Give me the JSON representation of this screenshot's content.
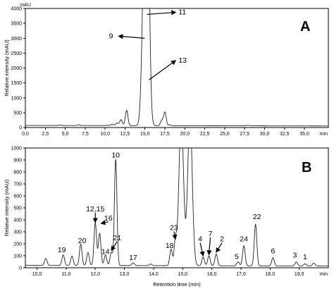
{
  "chart_data": [
    {
      "panel": "A",
      "type": "line",
      "unit_label": "mAU",
      "ylabel": "Relative intensity (mAU)",
      "xlabel": "",
      "x_unit_label": "min",
      "xlim": [
        0,
        38
      ],
      "ylim": [
        0,
        4000
      ],
      "xticks": [
        "0,0",
        "2,5",
        "5,0",
        "7,5",
        "10,0",
        "12,5",
        "15,0",
        "17,5",
        "20,0",
        "22,5",
        "25,0",
        "27,5",
        "30,0",
        "32,5",
        "35,0"
      ],
      "yticks": [
        "0",
        "500",
        "1000",
        "1500",
        "2000",
        "2500",
        "3000",
        "3500",
        "4000"
      ],
      "baseline": 70,
      "peaks": [
        {
          "x": 4.3,
          "y": 60
        },
        {
          "x": 6.7,
          "y": 70
        },
        {
          "x": 10.3,
          "y": 50
        },
        {
          "x": 10.9,
          "y": 90
        },
        {
          "x": 11.5,
          "y": 130
        },
        {
          "x": 12.0,
          "y": 240
        },
        {
          "x": 12.7,
          "y": 560
        },
        {
          "x": 14.6,
          "y": 200
        },
        {
          "x": 14.95,
          "y": 4000
        },
        {
          "x": 15.25,
          "y": 4000
        },
        {
          "x": 15.5,
          "y": 1600
        },
        {
          "x": 17.1,
          "y": 220
        },
        {
          "x": 17.5,
          "y": 500
        },
        {
          "x": 18.1,
          "y": 70
        },
        {
          "x": 27.9,
          "y": 60
        }
      ],
      "annotations": [
        {
          "text": "11",
          "target": [
            15.25,
            3800
          ],
          "label": [
            19.2,
            3800
          ]
        },
        {
          "text": "9",
          "target": [
            14.95,
            3000
          ],
          "label": [
            11.0,
            3000
          ]
        },
        {
          "text": "13",
          "target": [
            15.5,
            1600
          ],
          "label": [
            19.2,
            2180
          ]
        }
      ],
      "panel_letter": "A"
    },
    {
      "panel": "B",
      "type": "line",
      "ylabel": "Relative intensity (mAU)",
      "xlabel": "Retention time (min)",
      "x_unit_label": "min",
      "xlim": [
        9.6,
        20.0
      ],
      "ylim": [
        0,
        1000
      ],
      "xticks": [
        "10,0",
        "11,0",
        "12,0",
        "13,0",
        "14,0",
        "15,0",
        "16,0",
        "17,0",
        "18,0",
        "19,0"
      ],
      "yticks": [
        "0",
        "100",
        "200",
        "300",
        "400",
        "500",
        "600",
        "700",
        "800",
        "900",
        "1000"
      ],
      "baseline": 20,
      "peaks": [
        {
          "x": 10.3,
          "y": 70
        },
        {
          "x": 10.9,
          "y": 100
        },
        {
          "x": 11.2,
          "y": 90
        },
        {
          "x": 11.5,
          "y": 190
        },
        {
          "x": 11.75,
          "y": 120
        },
        {
          "x": 12.0,
          "y": 370
        },
        {
          "x": 12.15,
          "y": 280
        },
        {
          "x": 12.35,
          "y": 100
        },
        {
          "x": 12.55,
          "y": 120
        },
        {
          "x": 12.7,
          "y": 900
        },
        {
          "x": 13.3,
          "y": 35
        },
        {
          "x": 13.9,
          "y": 25
        },
        {
          "x": 14.6,
          "y": 150
        },
        {
          "x": 14.75,
          "y": 220
        },
        {
          "x": 14.95,
          "y": 1000
        },
        {
          "x": 15.25,
          "y": 1000
        },
        {
          "x": 15.7,
          "y": 85
        },
        {
          "x": 15.9,
          "y": 95
        },
        {
          "x": 16.15,
          "y": 110
        },
        {
          "x": 16.9,
          "y": 45
        },
        {
          "x": 17.1,
          "y": 180
        },
        {
          "x": 17.5,
          "y": 360
        },
        {
          "x": 18.1,
          "y": 80
        },
        {
          "x": 18.9,
          "y": 45
        },
        {
          "x": 19.2,
          "y": 30
        },
        {
          "x": 19.5,
          "y": 35
        }
      ],
      "annotations": [
        {
          "text": "10",
          "target": null,
          "label": [
            12.7,
            920
          ]
        },
        {
          "text": "12,15",
          "target": [
            12.0,
            380
          ],
          "label": [
            12.0,
            470
          ]
        },
        {
          "text": "16",
          "target": [
            12.2,
            370
          ],
          "label": [
            12.45,
            395
          ]
        },
        {
          "text": "21",
          "target": [
            12.55,
            145
          ],
          "label": [
            12.75,
            230
          ]
        },
        {
          "text": "20",
          "target": null,
          "label": [
            11.55,
            205
          ]
        },
        {
          "text": "19",
          "target": null,
          "label": [
            10.85,
            130
          ]
        },
        {
          "text": "14",
          "target": null,
          "label": [
            12.35,
            115
          ]
        },
        {
          "text": "17",
          "target": null,
          "label": [
            13.3,
            65
          ]
        },
        {
          "text": "18",
          "target": null,
          "label": [
            14.55,
            165
          ]
        },
        {
          "text": "23",
          "target": [
            14.75,
            240
          ],
          "label": [
            14.7,
            315
          ]
        },
        {
          "text": "4",
          "target": [
            15.7,
            100
          ],
          "label": [
            15.6,
            220
          ]
        },
        {
          "text": "7",
          "target": [
            15.9,
            110
          ],
          "label": [
            15.95,
            265
          ]
        },
        {
          "text": "2",
          "target": [
            16.15,
            130
          ],
          "label": [
            16.35,
            220
          ]
        },
        {
          "text": "24",
          "target": null,
          "label": [
            17.1,
            220
          ]
        },
        {
          "text": "5",
          "target": null,
          "label": [
            16.85,
            75
          ]
        },
        {
          "text": "22",
          "target": null,
          "label": [
            17.55,
            405
          ]
        },
        {
          "text": "6",
          "target": null,
          "label": [
            18.1,
            120
          ]
        },
        {
          "text": "3",
          "target": null,
          "label": [
            18.85,
            85
          ]
        },
        {
          "text": "1",
          "target": null,
          "label": [
            19.2,
            70
          ]
        }
      ],
      "panel_letter": "B"
    }
  ]
}
